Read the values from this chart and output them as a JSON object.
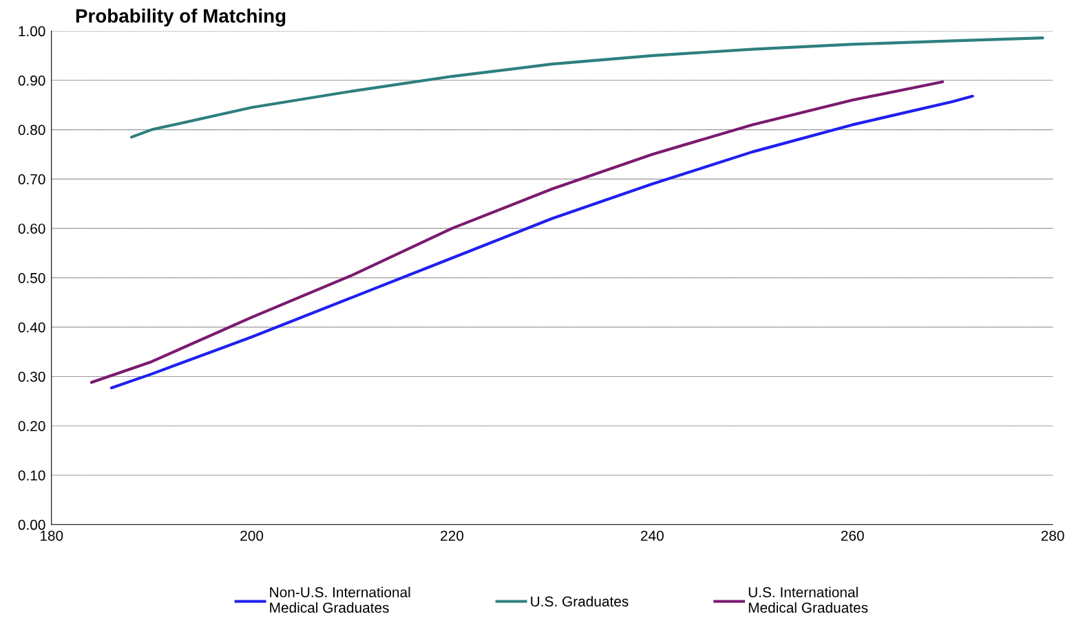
{
  "chart_data": {
    "type": "line",
    "title": "Probability of Matching",
    "xlim": [
      180,
      280
    ],
    "xticks": [
      180,
      200,
      220,
      240,
      260,
      280
    ],
    "ylim": [
      0,
      1
    ],
    "yticks": [
      {
        "value": 0,
        "label": "0.00"
      },
      {
        "value": 0.1,
        "label": "0.10"
      },
      {
        "value": 0.2,
        "label": "0.20"
      },
      {
        "value": 0.3,
        "label": "0.30"
      },
      {
        "value": 0.4,
        "label": "0.40"
      },
      {
        "value": 0.5,
        "label": "0.50"
      },
      {
        "value": 0.6,
        "label": "0.60"
      },
      {
        "value": 0.7,
        "label": "0.70"
      },
      {
        "value": 0.8,
        "label": "0.80"
      },
      {
        "value": 0.9,
        "label": "0.90"
      },
      {
        "value": 1,
        "label": "1.00"
      }
    ],
    "grid": "y",
    "legend": "bottom",
    "marker": "none",
    "line_style": "solid",
    "series": [
      {
        "name": "Non-U.S. International\nMedical Graduates",
        "color": "#1f1ff0",
        "x": [
          186,
          190,
          200,
          210,
          220,
          230,
          240,
          250,
          260,
          270,
          272
        ],
        "values": [
          0.277,
          0.305,
          0.38,
          0.46,
          0.54,
          0.62,
          0.69,
          0.755,
          0.81,
          0.857,
          0.868
        ]
      },
      {
        "name": "U.S. Graduates",
        "color": "#2e7f7f",
        "x": [
          188,
          190,
          200,
          210,
          220,
          230,
          240,
          250,
          260,
          270,
          279
        ],
        "values": [
          0.785,
          0.8,
          0.845,
          0.878,
          0.908,
          0.933,
          0.95,
          0.963,
          0.973,
          0.98,
          0.986
        ]
      },
      {
        "name": "U.S. International\nMedical Graduates",
        "color": "#7a1a6e",
        "x": [
          184,
          190,
          200,
          210,
          220,
          230,
          240,
          250,
          260,
          269
        ],
        "values": [
          0.288,
          0.33,
          0.42,
          0.505,
          0.6,
          0.68,
          0.75,
          0.81,
          0.86,
          0.897
        ]
      }
    ]
  }
}
